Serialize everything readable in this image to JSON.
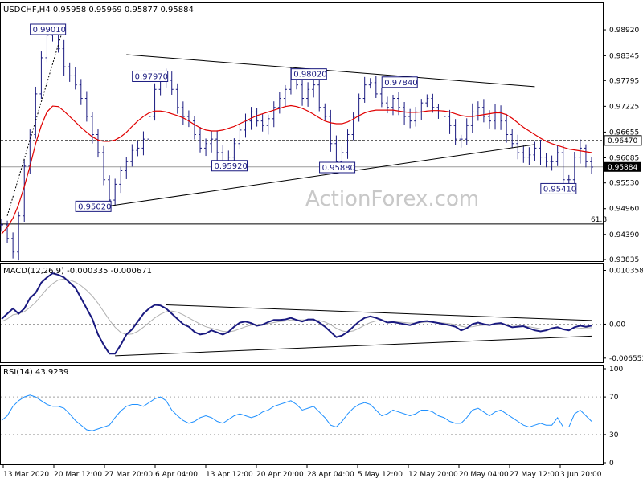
{
  "chart_data": [
    {
      "type": "line",
      "subtype": "ohlc-bars",
      "title": "USDCHF,H4  0.95958 0.95969 0.95877 0.95884",
      "ylim": [
        0.93835,
        0.9949
      ],
      "y_ticks": [
        "0.98920",
        "0.98345",
        "0.97795",
        "0.97225",
        "0.96655",
        "0.96085",
        "0.95530",
        "0.94960",
        "0.94390",
        "0.93835"
      ],
      "x_ticks": [
        "13 Mar 2020",
        "20 Mar 12:00",
        "27 Mar 20:00",
        "6 Apr 04:00",
        "13 Apr 12:00",
        "20 Apr 20:00",
        "28 Apr 04:00",
        "5 May 12:00",
        "12 May 20:00",
        "20 May 04:00",
        "27 May 12:00",
        "3 Jun 20:00"
      ],
      "series": [
        {
          "name": "",
          "values": [
            0.946,
            0.943,
            0.94,
            0.948,
            0.959,
            0.966,
            0.975,
            0.983,
            0.988,
            0.9885,
            0.985,
            0.981,
            0.979,
            0.977,
            0.974,
            0.97,
            0.966,
            0.962,
            0.956,
            0.9515,
            0.955,
            0.958,
            0.96,
            0.9625,
            0.963,
            0.965,
            0.97,
            0.976,
            0.979,
            0.978,
            0.976,
            0.972,
            0.97,
            0.969,
            0.966,
            0.963,
            0.964,
            0.965,
            0.962,
            0.96,
            0.961,
            0.964,
            0.967,
            0.969,
            0.971,
            0.969,
            0.968,
            0.9695,
            0.972,
            0.974,
            0.976,
            0.979,
            0.977,
            0.974,
            0.976,
            0.977,
            0.972,
            0.97,
            0.964,
            0.96,
            0.962,
            0.966,
            0.97,
            0.974,
            0.977,
            0.9775,
            0.975,
            0.973,
            0.972,
            0.974,
            0.972,
            0.97,
            0.969,
            0.971,
            0.973,
            0.974,
            0.972,
            0.971,
            0.97,
            0.968,
            0.965,
            0.965,
            0.968,
            0.971,
            0.972,
            0.97,
            0.969,
            0.971,
            0.969,
            0.966,
            0.964,
            0.962,
            0.961,
            0.9615,
            0.963,
            0.961,
            0.96,
            0.96,
            0.962,
            0.956,
            0.956,
            0.961,
            0.963,
            0.96,
            0.9588
          ],
          "color": "#1a1a80"
        },
        {
          "name": "",
          "values": [
            0.944,
            0.9455,
            0.9475,
            0.9505,
            0.9545,
            0.959,
            0.964,
            0.968,
            0.971,
            0.9723,
            0.9722,
            0.9712,
            0.97,
            0.9688,
            0.9676,
            0.9665,
            0.9655,
            0.9648,
            0.9645,
            0.9645,
            0.9648,
            0.9655,
            0.9665,
            0.9678,
            0.969,
            0.97,
            0.9708,
            0.9712,
            0.9712,
            0.971,
            0.9706,
            0.9702,
            0.9697,
            0.969,
            0.9682,
            0.9675,
            0.967,
            0.9668,
            0.9668,
            0.967,
            0.9674,
            0.9678,
            0.9684,
            0.969,
            0.9696,
            0.9702,
            0.9706,
            0.971,
            0.9714,
            0.9718,
            0.9722,
            0.9724,
            0.9722,
            0.9718,
            0.9712,
            0.9705,
            0.9697,
            0.969,
            0.9686,
            0.9684,
            0.9684,
            0.9688,
            0.9694,
            0.9702,
            0.9708,
            0.9712,
            0.9714,
            0.9714,
            0.9714,
            0.9714,
            0.9712,
            0.971,
            0.9709,
            0.9709,
            0.971,
            0.9712,
            0.9713,
            0.9713,
            0.9712,
            0.971,
            0.9706,
            0.9702,
            0.97,
            0.97,
            0.9702,
            0.9704,
            0.9706,
            0.9708,
            0.9708,
            0.9704,
            0.9696,
            0.9686,
            0.9676,
            0.9668,
            0.966,
            0.9652,
            0.9645,
            0.964,
            0.9636,
            0.9632,
            0.9628,
            0.9626,
            0.9624,
            0.9622,
            0.962
          ],
          "color": "#e00000"
        }
      ],
      "annotations": [
        {
          "label": "0.99010",
          "x": 11,
          "y": 0.9901
        },
        {
          "label": "0.97970",
          "x": 29,
          "y": 0.9797
        },
        {
          "label": "0.95020",
          "x": 19,
          "y": 0.9502
        },
        {
          "label": "0.95920",
          "x": 43,
          "y": 0.9592
        },
        {
          "label": "0.98020",
          "x": 57,
          "y": 0.9802
        },
        {
          "label": "0.95880",
          "x": 62,
          "y": 0.9588
        },
        {
          "label": "0.97840",
          "x": 73,
          "y": 0.9784
        },
        {
          "label": "0.95410",
          "x": 101,
          "y": 0.9541
        }
      ],
      "levels": [
        {
          "value": 0.9647,
          "label": "0.96470",
          "style": "dashed",
          "color": "#000000"
        },
        {
          "value": 0.95884,
          "label": "0.95884",
          "style": "solid",
          "color": "#000000",
          "marker": "current-price"
        },
        {
          "value": 0.9462,
          "label": "61.8",
          "style": "solid",
          "color": "#000000"
        }
      ],
      "trendlines": [
        {
          "from": [
            19,
            0.9502
          ],
          "to": [
            94,
            0.9638
          ]
        },
        {
          "from": [
            22,
            0.9837
          ],
          "to": [
            94,
            0.9766
          ]
        },
        {
          "from": [
            1,
            0.948
          ],
          "to": [
            11,
            0.9901
          ],
          "style": "dotted"
        }
      ]
    },
    {
      "type": "line",
      "title": "MACD(12,26,9) -0.000335 -0.000671",
      "ylim": [
        -0.0072,
        0.0109
      ],
      "y_ticks": [
        "0.010358",
        "0.00",
        "-0.006553"
      ],
      "series": [
        {
          "name": "",
          "values": [
            0.001,
            0.002,
            0.003,
            0.002,
            0.003,
            0.005,
            0.006,
            0.008,
            0.009,
            0.0098,
            0.0095,
            0.009,
            0.008,
            0.007,
            0.005,
            0.003,
            0.001,
            -0.002,
            -0.004,
            -0.0057,
            -0.0057,
            -0.004,
            -0.002,
            -0.001,
            0.0005,
            0.002,
            0.003,
            0.0037,
            0.0036,
            0.003,
            0.002,
            0.001,
            0.0,
            -0.0005,
            -0.0015,
            -0.002,
            -0.0018,
            -0.0012,
            -0.0016,
            -0.002,
            -0.0015,
            -0.0005,
            0.0003,
            0.0005,
            0.0002,
            -0.0003,
            -0.0001,
            0.0004,
            0.0008,
            0.0008,
            0.0009,
            0.0012,
            0.0008,
            0.0005,
            0.0009,
            0.0009,
            0.0003,
            -0.0005,
            -0.0015,
            -0.0025,
            -0.0022,
            -0.0015,
            -0.0005,
            0.0005,
            0.0012,
            0.0015,
            0.0012,
            0.0008,
            0.0003,
            0.0004,
            0.0002,
            0.0,
            -0.0002,
            0.0002,
            0.0005,
            0.0006,
            0.0004,
            0.0002,
            0.0,
            -0.0002,
            -0.0005,
            -0.0012,
            -0.0008,
            0.0,
            0.0003,
            0.0,
            -0.0002,
            0.0001,
            0.0002,
            -0.0002,
            -0.0006,
            -0.0005,
            -0.0004,
            -0.0008,
            -0.0012,
            -0.0014,
            -0.0012,
            -0.0008,
            -0.0006,
            -0.001,
            -0.0012,
            -0.0006,
            -0.0003,
            -0.0005,
            -0.0003
          ],
          "color": "#1a1a80"
        },
        {
          "name": "",
          "values": [
            0.0005,
            0.001,
            0.0018,
            0.002,
            0.0024,
            0.0032,
            0.0042,
            0.0055,
            0.0068,
            0.0078,
            0.0085,
            0.0087,
            0.0085,
            0.0081,
            0.0074,
            0.0065,
            0.0054,
            0.004,
            0.0024,
            0.0008,
            -0.0006,
            -0.0016,
            -0.002,
            -0.0019,
            -0.0014,
            -0.0006,
            0.0003,
            0.0012,
            0.0019,
            0.0024,
            0.0025,
            0.0023,
            0.0018,
            0.0012,
            0.0006,
            0.0,
            -0.0005,
            -0.0008,
            -0.0011,
            -0.0014,
            -0.0015,
            -0.0013,
            -0.0009,
            -0.0005,
            -0.0002,
            -0.0001,
            -0.0001,
            0.0001,
            0.0003,
            0.0005,
            0.0006,
            0.0008,
            0.0008,
            0.0008,
            0.0008,
            0.0008,
            0.0007,
            0.0004,
            -0.0001,
            -0.0008,
            -0.0013,
            -0.0015,
            -0.0013,
            -0.0008,
            -0.0002,
            0.0003,
            0.0006,
            0.0007,
            0.0006,
            0.0005,
            0.0004,
            0.0003,
            0.0002,
            0.0002,
            0.0003,
            0.0004,
            0.0004,
            0.0003,
            0.0002,
            0.0001,
            -0.0001,
            -0.0004,
            -0.0006,
            -0.0005,
            -0.0003,
            -0.0002,
            -0.0002,
            -0.0001,
            0.0,
            -0.0001,
            -0.0002,
            -0.0003,
            -0.0004,
            -0.0005,
            -0.0007,
            -0.0009,
            -0.001,
            -0.001,
            -0.0009,
            -0.0009,
            -0.001,
            -0.0009,
            -0.0008,
            -0.0007,
            -0.0007
          ],
          "color": "#b0b0b0"
        }
      ],
      "levels": [
        {
          "value": 0,
          "style": "dotted",
          "color": "#a0a0a0"
        }
      ],
      "trendlines": [
        {
          "from": [
            29,
            0.0037
          ],
          "to": [
            104,
            0.0007
          ]
        },
        {
          "from": [
            20,
            -0.0061
          ],
          "to": [
            104,
            -0.0023
          ]
        }
      ]
    },
    {
      "type": "line",
      "title": "RSI(14) 43.9239",
      "ylim": [
        0,
        100
      ],
      "y_ticks": [
        "100",
        "70",
        "30",
        "0"
      ],
      "series": [
        {
          "name": "",
          "values": [
            45,
            50,
            60,
            66,
            70,
            72,
            70,
            66,
            62,
            60,
            60,
            58,
            52,
            45,
            40,
            35,
            34,
            36,
            38,
            40,
            48,
            55,
            60,
            62,
            62,
            60,
            64,
            68,
            70,
            66,
            56,
            50,
            45,
            42,
            44,
            48,
            50,
            48,
            44,
            42,
            46,
            50,
            52,
            50,
            48,
            50,
            54,
            56,
            60,
            62,
            64,
            66,
            62,
            56,
            58,
            60,
            54,
            48,
            40,
            38,
            44,
            52,
            58,
            62,
            64,
            62,
            56,
            50,
            52,
            56,
            54,
            52,
            50,
            52,
            56,
            56,
            54,
            50,
            48,
            44,
            42,
            42,
            48,
            56,
            58,
            54,
            50,
            54,
            56,
            52,
            48,
            44,
            40,
            38,
            40,
            42,
            40,
            40,
            48,
            38,
            38,
            52,
            56,
            50,
            44
          ],
          "color": "#1e90ff"
        }
      ],
      "levels": [
        {
          "value": 70,
          "style": "dotted",
          "color": "#a0a0a0"
        },
        {
          "value": 30,
          "style": "dotted",
          "color": "#a0a0a0"
        }
      ]
    }
  ],
  "watermark": "ActionForex.com"
}
